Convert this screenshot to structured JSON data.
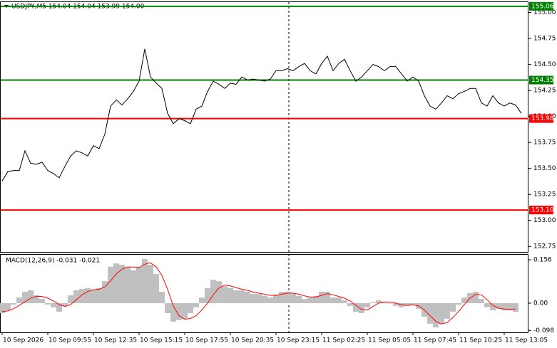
{
  "chart_data": [
    {
      "type": "line",
      "title": "USDJPY,M5  154.04 154.04 153.99 154.00",
      "xlim": [
        0,
        90.5
      ],
      "xticks": [
        {
          "value": 0,
          "label": "10 Sep 2026"
        },
        {
          "value": 8,
          "label": "10 Sep 09:55"
        },
        {
          "value": 16,
          "label": "10 Sep 12:35"
        },
        {
          "value": 24,
          "label": "10 Sep 15:15"
        },
        {
          "value": 32,
          "label": "10 Sep 17:55"
        },
        {
          "value": 40,
          "label": "10 Sep 20:35"
        },
        {
          "value": 48,
          "label": "10 Sep 23:15"
        },
        {
          "value": 56,
          "label": "11 Sep 02:25"
        },
        {
          "value": 64,
          "label": "11 Sep 05:05"
        },
        {
          "value": 72,
          "label": "11 Sep 07:45"
        },
        {
          "value": 80,
          "label": "11 Sep 10:25"
        },
        {
          "value": 88,
          "label": "11 Sep 13:05"
        }
      ],
      "ylim": [
        152.69,
        155.1
      ],
      "yticks": [
        {
          "value": 155,
          "label": "155.00"
        },
        154.75,
        {
          "value": 154.5,
          "label": "154.50"
        },
        154.25,
        {
          "value": 154,
          "label": "154.00"
        },
        153.75,
        {
          "value": 153.5,
          "label": "153.50"
        },
        153.25,
        {
          "value": 153,
          "label": "153.00"
        },
        152.75
      ],
      "color": "#000000",
      "values": [
        153.38,
        153.47,
        153.48,
        153.48,
        153.67,
        153.55,
        153.54,
        153.56,
        153.48,
        153.45,
        153.41,
        153.52,
        153.62,
        153.67,
        153.65,
        153.62,
        153.72,
        153.69,
        153.83,
        154.1,
        154.16,
        154.11,
        154.17,
        154.24,
        154.34,
        154.65,
        154.38,
        154.32,
        154.27,
        154.03,
        153.93,
        153.98,
        153.96,
        153.93,
        154.07,
        154.1,
        154.24,
        154.34,
        154.31,
        154.27,
        154.32,
        154.31,
        154.38,
        154.35,
        154.36,
        154.35,
        154.34,
        154.36,
        154.44,
        154.44,
        154.46,
        154.44,
        154.48,
        154.51,
        154.44,
        154.41,
        154.51,
        154.58,
        154.44,
        154.51,
        154.55,
        154.44,
        154.34,
        154.38,
        154.44,
        154.5,
        154.48,
        154.44,
        154.48,
        154.48,
        154.41,
        154.34,
        154.38,
        154.34,
        154.2,
        154.1,
        154.07,
        154.13,
        154.2,
        154.17,
        154.22,
        154.24,
        154.27,
        154.27,
        154.13,
        154.1,
        154.2,
        154.13,
        154.1,
        154.13,
        154.11,
        154.03
      ],
      "levels": [
        {
          "value": 155.06,
          "color": "#008000"
        },
        {
          "value": 154.35,
          "color": "#008000"
        },
        {
          "value": 153.98,
          "color": "#ff0000"
        },
        {
          "value": 153.1,
          "label": "153.10",
          "color": "#ff0000"
        }
      ]
    },
    {
      "type": "combo",
      "title": "MACD(12,26,9) -0.031 -0.021",
      "xlim": [
        0,
        90.5
      ],
      "ylim": [
        -0.105,
        0.174
      ],
      "yticks": [
        0.156,
        {
          "value": 0,
          "label": "0.00"
        },
        -0.098
      ],
      "series": [
        {
          "type": "bar",
          "color": "#c0c0c0",
          "values": [
            -0.036,
            -0.026,
            -0.005,
            0.02,
            0.041,
            0.046,
            0.028,
            0.015,
            -0.005,
            -0.015,
            -0.031,
            -0.01,
            0.028,
            0.046,
            0.051,
            0.054,
            0.049,
            0.054,
            0.079,
            0.131,
            0.143,
            0.138,
            0.131,
            0.118,
            0.131,
            0.159,
            0.138,
            0.105,
            0.041,
            -0.036,
            -0.067,
            -0.061,
            -0.056,
            -0.036,
            -0.015,
            0.02,
            0.054,
            0.084,
            0.079,
            0.061,
            0.054,
            0.046,
            0.046,
            0.041,
            0.033,
            0.033,
            0.026,
            0.02,
            0.031,
            0.041,
            0.041,
            0.036,
            0.026,
            0.015,
            0.02,
            0.026,
            0.041,
            0.041,
            0.02,
            0.02,
            0.01,
            -0.01,
            -0.031,
            -0.036,
            -0.015,
            0.003,
            0.01,
            0.005,
            0.0,
            -0.01,
            -0.015,
            -0.01,
            -0.005,
            -0.02,
            -0.049,
            -0.074,
            -0.087,
            -0.074,
            -0.056,
            -0.031,
            -0.005,
            0.02,
            0.036,
            0.041,
            0.015,
            -0.015,
            -0.026,
            -0.02,
            -0.026,
            -0.026,
            -0.031
          ]
        },
        {
          "type": "line",
          "color": "#ff0000",
          "values": [
            -0.03,
            -0.028,
            -0.02,
            -0.008,
            0.005,
            0.018,
            0.025,
            0.024,
            0.018,
            0.008,
            -0.005,
            -0.012,
            -0.005,
            0.012,
            0.03,
            0.042,
            0.048,
            0.05,
            0.058,
            0.08,
            0.105,
            0.122,
            0.13,
            0.13,
            0.128,
            0.14,
            0.145,
            0.13,
            0.1,
            0.05,
            -0.01,
            -0.045,
            -0.058,
            -0.055,
            -0.045,
            -0.025,
            0.0,
            0.03,
            0.055,
            0.065,
            0.062,
            0.056,
            0.05,
            0.046,
            0.04,
            0.036,
            0.032,
            0.028,
            0.028,
            0.032,
            0.036,
            0.036,
            0.032,
            0.026,
            0.022,
            0.022,
            0.028,
            0.034,
            0.03,
            0.024,
            0.018,
            0.008,
            -0.008,
            -0.022,
            -0.025,
            -0.012,
            0.0,
            0.004,
            0.004,
            0.0,
            -0.006,
            -0.008,
            -0.006,
            -0.01,
            -0.025,
            -0.045,
            -0.065,
            -0.075,
            -0.07,
            -0.052,
            -0.03,
            -0.005,
            0.018,
            0.032,
            0.03,
            0.012,
            -0.008,
            -0.018,
            -0.021,
            -0.022,
            -0.021
          ]
        }
      ]
    }
  ]
}
